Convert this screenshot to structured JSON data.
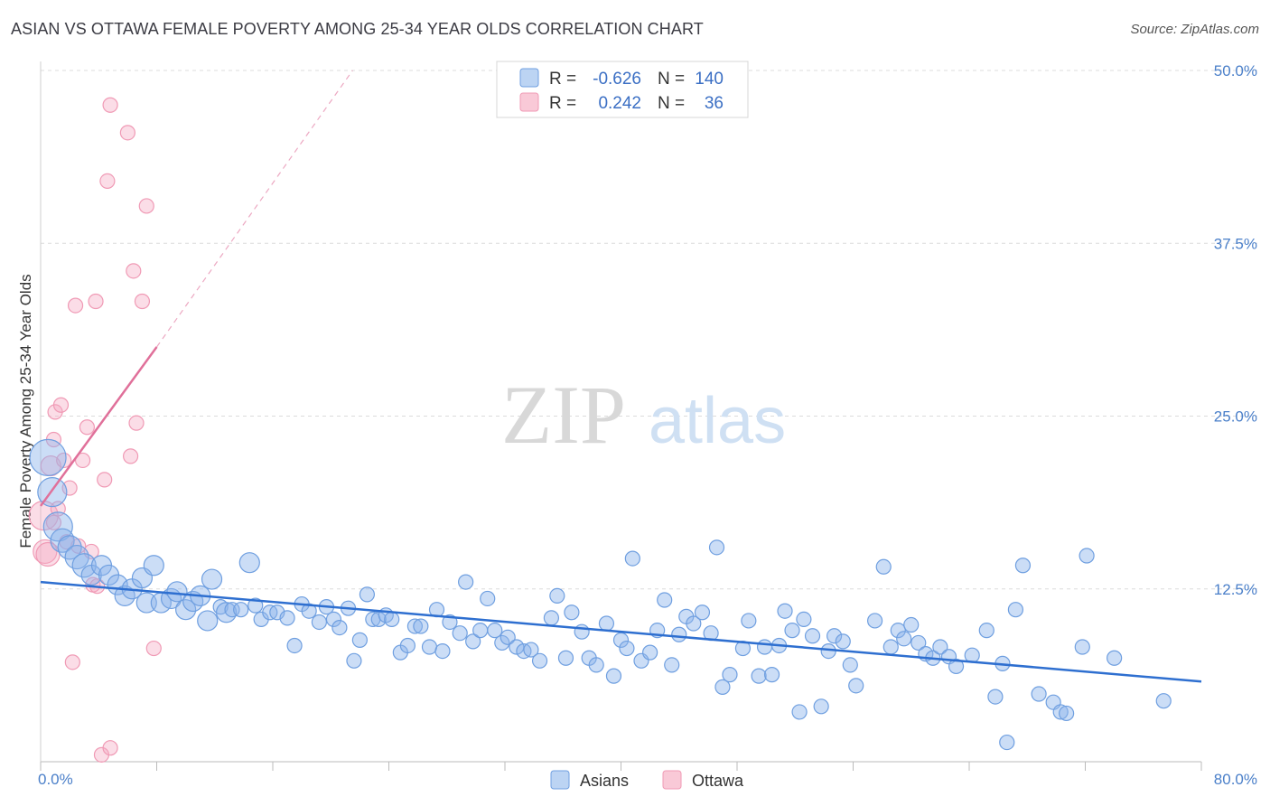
{
  "title": "ASIAN VS OTTAWA FEMALE POVERTY AMONG 25-34 YEAR OLDS CORRELATION CHART",
  "source": "Source: ZipAtlas.com",
  "watermark": {
    "zip": "ZIP",
    "atlas": "atlas"
  },
  "colors": {
    "asians": "#6f9fe0",
    "ottawa": "#f09ab5",
    "asians_line": "#2e6fd0",
    "ottawa_line": "#e0709a"
  },
  "legend": {
    "r_label": "R =",
    "n_label": "N =",
    "rows": [
      {
        "r": "-0.626",
        "n": "140"
      },
      {
        "r": "0.242",
        "n": "36"
      }
    ]
  },
  "bottom_legend": [
    "Asians",
    "Ottawa"
  ],
  "chart_data": {
    "type": "scatter",
    "title": "ASIAN VS OTTAWA FEMALE POVERTY AMONG 25-34 YEAR OLDS CORRELATION CHART",
    "ylabel": "Female Poverty Among 25-34 Year Olds",
    "xlim": [
      0,
      80
    ],
    "ylim": [
      0,
      50
    ],
    "y_ticks": [
      "12.5%",
      "25.0%",
      "37.5%",
      "50.0%"
    ],
    "x_ticks": [
      "0.0%",
      "80.0%"
    ],
    "grid": true,
    "series": [
      {
        "name": "Asians",
        "trend": {
          "x0": 0,
          "y0": 13.0,
          "x1": 80,
          "y1": 5.8
        },
        "points": [
          [
            0.5,
            22,
            5
          ],
          [
            0.8,
            19.5,
            4
          ],
          [
            1.2,
            17,
            4
          ],
          [
            1.5,
            16,
            3
          ],
          [
            2,
            15.5,
            3
          ],
          [
            2.5,
            14.8,
            3
          ],
          [
            3,
            14.2,
            3
          ],
          [
            3.5,
            13.5,
            2
          ],
          [
            4.2,
            14.2,
            2
          ],
          [
            4.7,
            13.5,
            2
          ],
          [
            5.3,
            12.8,
            2
          ],
          [
            5.8,
            12,
            2
          ],
          [
            6.3,
            12.5,
            2
          ],
          [
            7,
            13.3,
            2
          ],
          [
            7.3,
            11.5,
            2
          ],
          [
            7.8,
            14.2,
            2
          ],
          [
            8.3,
            11.5,
            2
          ],
          [
            9,
            11.8,
            2
          ],
          [
            9.4,
            12.3,
            2
          ],
          [
            10,
            11,
            2
          ],
          [
            10.5,
            11.6,
            2
          ],
          [
            11,
            12,
            2
          ],
          [
            11.5,
            10.2,
            2
          ],
          [
            11.8,
            13.2,
            2
          ],
          [
            12.4,
            11.2,
            1
          ],
          [
            12.8,
            10.8,
            2
          ],
          [
            13.2,
            11,
            1
          ],
          [
            13.8,
            11,
            1
          ],
          [
            14.4,
            14.4,
            2
          ],
          [
            14.8,
            11.3,
            1
          ],
          [
            15.2,
            10.3,
            1
          ],
          [
            15.8,
            10.8,
            1
          ],
          [
            16.3,
            10.8,
            1
          ],
          [
            17,
            10.4,
            1
          ],
          [
            17.5,
            8.4,
            1
          ],
          [
            18,
            11.4,
            1
          ],
          [
            18.5,
            10.9,
            1
          ],
          [
            19.2,
            10.1,
            1
          ],
          [
            19.7,
            11.2,
            1
          ],
          [
            20.2,
            10.3,
            1
          ],
          [
            20.6,
            9.7,
            1
          ],
          [
            21.2,
            11.1,
            1
          ],
          [
            21.6,
            7.3,
            1
          ],
          [
            22,
            8.8,
            1
          ],
          [
            22.5,
            12.1,
            1
          ],
          [
            22.9,
            10.3,
            1
          ],
          [
            23.3,
            10.3,
            1
          ],
          [
            23.8,
            10.6,
            1
          ],
          [
            24.2,
            10.3,
            1
          ],
          [
            24.8,
            7.9,
            1
          ],
          [
            25.3,
            8.4,
            1
          ],
          [
            25.8,
            9.8,
            1
          ],
          [
            26.2,
            9.8,
            1
          ],
          [
            26.8,
            8.3,
            1
          ],
          [
            27.3,
            11,
            1
          ],
          [
            27.7,
            8,
            1
          ],
          [
            28.2,
            10.1,
            1
          ],
          [
            28.9,
            9.3,
            1
          ],
          [
            29.3,
            13,
            1
          ],
          [
            29.8,
            8.7,
            1
          ],
          [
            30.3,
            9.5,
            1
          ],
          [
            30.8,
            11.8,
            1
          ],
          [
            31.3,
            9.5,
            1
          ],
          [
            31.8,
            8.6,
            1
          ],
          [
            32.2,
            9,
            1
          ],
          [
            32.8,
            8.3,
            1
          ],
          [
            33.3,
            8,
            1
          ],
          [
            33.8,
            8.1,
            1
          ],
          [
            34.4,
            7.3,
            1
          ],
          [
            35.2,
            10.4,
            1
          ],
          [
            35.6,
            12,
            1
          ],
          [
            36.2,
            7.5,
            1
          ],
          [
            36.6,
            10.8,
            1
          ],
          [
            37.3,
            9.4,
            1
          ],
          [
            37.8,
            7.5,
            1
          ],
          [
            38.3,
            7,
            1
          ],
          [
            39,
            10,
            1
          ],
          [
            39.5,
            6.2,
            1
          ],
          [
            40,
            8.8,
            1
          ],
          [
            40.4,
            8.2,
            1
          ],
          [
            40.8,
            14.7,
            1
          ],
          [
            41.4,
            7.3,
            1
          ],
          [
            42,
            7.9,
            1
          ],
          [
            42.5,
            9.5,
            1
          ],
          [
            43,
            11.7,
            1
          ],
          [
            43.5,
            7,
            1
          ],
          [
            44,
            9.2,
            1
          ],
          [
            44.5,
            10.5,
            1
          ],
          [
            45,
            10,
            1
          ],
          [
            45.6,
            10.8,
            1
          ],
          [
            46.2,
            9.3,
            1
          ],
          [
            46.6,
            15.5,
            1
          ],
          [
            47,
            5.4,
            1
          ],
          [
            47.5,
            6.3,
            1
          ],
          [
            48.4,
            8.2,
            1
          ],
          [
            48.8,
            10.2,
            1
          ],
          [
            49.5,
            6.2,
            1
          ],
          [
            49.9,
            8.3,
            1
          ],
          [
            50.4,
            6.3,
            1
          ],
          [
            50.9,
            8.4,
            1
          ],
          [
            51.3,
            10.9,
            1
          ],
          [
            51.8,
            9.5,
            1
          ],
          [
            52.3,
            3.6,
            1
          ],
          [
            52.6,
            10.3,
            1
          ],
          [
            53.2,
            9.1,
            1
          ],
          [
            53.8,
            4,
            1
          ],
          [
            54.3,
            8,
            1
          ],
          [
            54.7,
            9.1,
            1
          ],
          [
            55.3,
            8.7,
            1
          ],
          [
            55.8,
            7,
            1
          ],
          [
            56.2,
            5.5,
            1
          ],
          [
            57.5,
            10.2,
            1
          ],
          [
            58.1,
            14.1,
            1
          ],
          [
            58.6,
            8.3,
            1
          ],
          [
            59.1,
            9.5,
            1
          ],
          [
            59.5,
            8.9,
            1
          ],
          [
            60,
            9.9,
            1
          ],
          [
            60.5,
            8.6,
            1
          ],
          [
            61,
            7.8,
            1
          ],
          [
            61.5,
            7.5,
            1
          ],
          [
            62,
            8.3,
            1
          ],
          [
            62.6,
            7.6,
            1
          ],
          [
            63.1,
            6.9,
            1
          ],
          [
            64.2,
            7.7,
            1
          ],
          [
            65.2,
            9.5,
            1
          ],
          [
            65.8,
            4.7,
            1
          ],
          [
            66.3,
            7.1,
            1
          ],
          [
            66.6,
            1.4,
            1
          ],
          [
            67.2,
            11,
            1
          ],
          [
            67.7,
            14.2,
            1
          ],
          [
            68.8,
            4.9,
            1
          ],
          [
            69.8,
            4.3,
            1
          ],
          [
            70.3,
            3.6,
            1
          ],
          [
            70.7,
            3.5,
            1
          ],
          [
            71.8,
            8.3,
            1
          ],
          [
            72.1,
            14.9,
            1
          ],
          [
            74,
            7.5,
            1
          ],
          [
            77.4,
            4.4,
            1
          ]
        ]
      },
      {
        "name": "Ottawa",
        "trend": {
          "x0": 0,
          "y0": 18.5,
          "x1": 8,
          "y1": 30.0,
          "ext_x1": 21.5,
          "ext_y1": 50.0
        },
        "points": [
          [
            0.2,
            17.8,
            4
          ],
          [
            0.3,
            15.2,
            3
          ],
          [
            0.5,
            15,
            3
          ],
          [
            0.7,
            21.4,
            2
          ],
          [
            0.9,
            23.3,
            1
          ],
          [
            0.9,
            17.3,
            1
          ],
          [
            1,
            25.3,
            1
          ],
          [
            1.2,
            18.3,
            1
          ],
          [
            1.4,
            25.8,
            1
          ],
          [
            1.6,
            21.8,
            1
          ],
          [
            1.8,
            15.9,
            1
          ],
          [
            2,
            19.8,
            1
          ],
          [
            2.2,
            7.2,
            1
          ],
          [
            2.4,
            33,
            1
          ],
          [
            2.6,
            15.6,
            1
          ],
          [
            2.9,
            21.8,
            1
          ],
          [
            3.2,
            24.2,
            1
          ],
          [
            3.5,
            15.2,
            1
          ],
          [
            3.6,
            12.8,
            1
          ],
          [
            3.8,
            33.3,
            1
          ],
          [
            3.9,
            12.7,
            1
          ],
          [
            4.2,
            0.5,
            1
          ],
          [
            4.4,
            20.4,
            1
          ],
          [
            4.6,
            42,
            1
          ],
          [
            4.8,
            1,
            1
          ],
          [
            6.2,
            22.1,
            1
          ],
          [
            6.4,
            35.5,
            1
          ],
          [
            4.8,
            47.5,
            1
          ],
          [
            6,
            45.5,
            1
          ],
          [
            6.6,
            24.5,
            1
          ],
          [
            7,
            33.3,
            1
          ],
          [
            7.3,
            40.2,
            1
          ],
          [
            7.8,
            8.2,
            1
          ]
        ]
      }
    ]
  }
}
